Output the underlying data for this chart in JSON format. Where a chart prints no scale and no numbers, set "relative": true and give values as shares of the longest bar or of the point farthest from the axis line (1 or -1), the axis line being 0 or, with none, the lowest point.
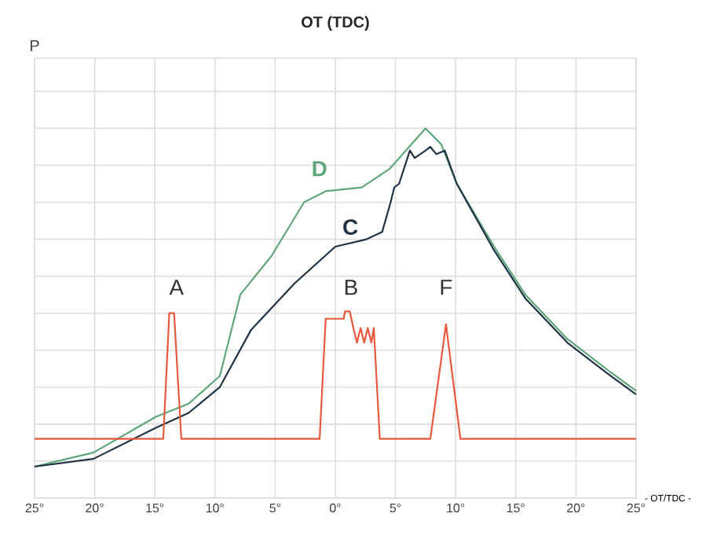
{
  "chart_data": {
    "type": "line",
    "title": "OT (TDC)",
    "xlabel": "- OT/TDC -",
    "ylabel": "P",
    "relative": true,
    "grid": true,
    "tick_labels": "x",
    "marker": "none",
    "line_style": "solid",
    "xlim": [
      -25,
      25
    ],
    "xticks": [
      {
        "value": -25,
        "label": "25°"
      },
      {
        "value": -20,
        "label": "20°"
      },
      {
        "value": -15,
        "label": "15°"
      },
      {
        "value": -10,
        "label": "10°"
      },
      {
        "value": -5,
        "label": "5°"
      },
      {
        "value": 0,
        "label": "0°"
      },
      {
        "value": 5,
        "label": "5°"
      },
      {
        "value": 10,
        "label": "10°"
      },
      {
        "value": 15,
        "label": "15°"
      },
      {
        "value": 20,
        "label": "20°"
      },
      {
        "value": 25,
        "label": "25°"
      }
    ],
    "series": [
      {
        "name": "D",
        "color": "#5fa57a",
        "x": [
          -25,
          -20.1,
          -14.9,
          -12.2,
          -9.6,
          -7.9,
          -5.3,
          -2.6,
          -0.8,
          2.2,
          4.5,
          7.5,
          8.8,
          10.1,
          13.2,
          15.8,
          19.3,
          22.9,
          25
        ],
        "values": [
          0.085,
          0.123,
          0.22,
          0.255,
          0.33,
          0.55,
          0.655,
          0.8,
          0.83,
          0.84,
          0.89,
          1.0,
          0.957,
          0.85,
          0.68,
          0.55,
          0.43,
          0.34,
          0.29
        ]
      },
      {
        "name": "C",
        "color": "#1f3344",
        "x": [
          -25,
          -20.1,
          -14.9,
          -12.2,
          -9.6,
          -7.0,
          -3.4,
          0,
          2.6,
          3.9,
          4.6,
          4.9,
          5.3,
          6.2,
          6.6,
          7.5,
          7.9,
          8.4,
          9.1,
          10.1,
          13.2,
          15.8,
          19.3,
          22.9,
          25
        ],
        "values": [
          0.085,
          0.106,
          0.19,
          0.23,
          0.3,
          0.455,
          0.58,
          0.68,
          0.7,
          0.72,
          0.8,
          0.84,
          0.85,
          0.94,
          0.92,
          0.94,
          0.95,
          0.93,
          0.94,
          0.85,
          0.67,
          0.54,
          0.42,
          0.33,
          0.28
        ]
      },
      {
        "color": "#e8583c",
        "x": [
          -25,
          -14.3,
          -13.8,
          -13.4,
          -12.8,
          -1.3,
          -0.8,
          0.7,
          0.8,
          1.2,
          1.5,
          1.8,
          2.1,
          2.4,
          2.7,
          3.0,
          3.2,
          3.7,
          7.9,
          9.2,
          10.4,
          25
        ],
        "values": [
          0.16,
          0.16,
          0.5,
          0.5,
          0.16,
          0.16,
          0.485,
          0.485,
          0.505,
          0.505,
          0.46,
          0.42,
          0.46,
          0.42,
          0.46,
          0.42,
          0.46,
          0.16,
          0.16,
          0.47,
          0.16,
          0.16
        ]
      }
    ],
    "annotations": [
      "A",
      "B",
      "F"
    ]
  }
}
